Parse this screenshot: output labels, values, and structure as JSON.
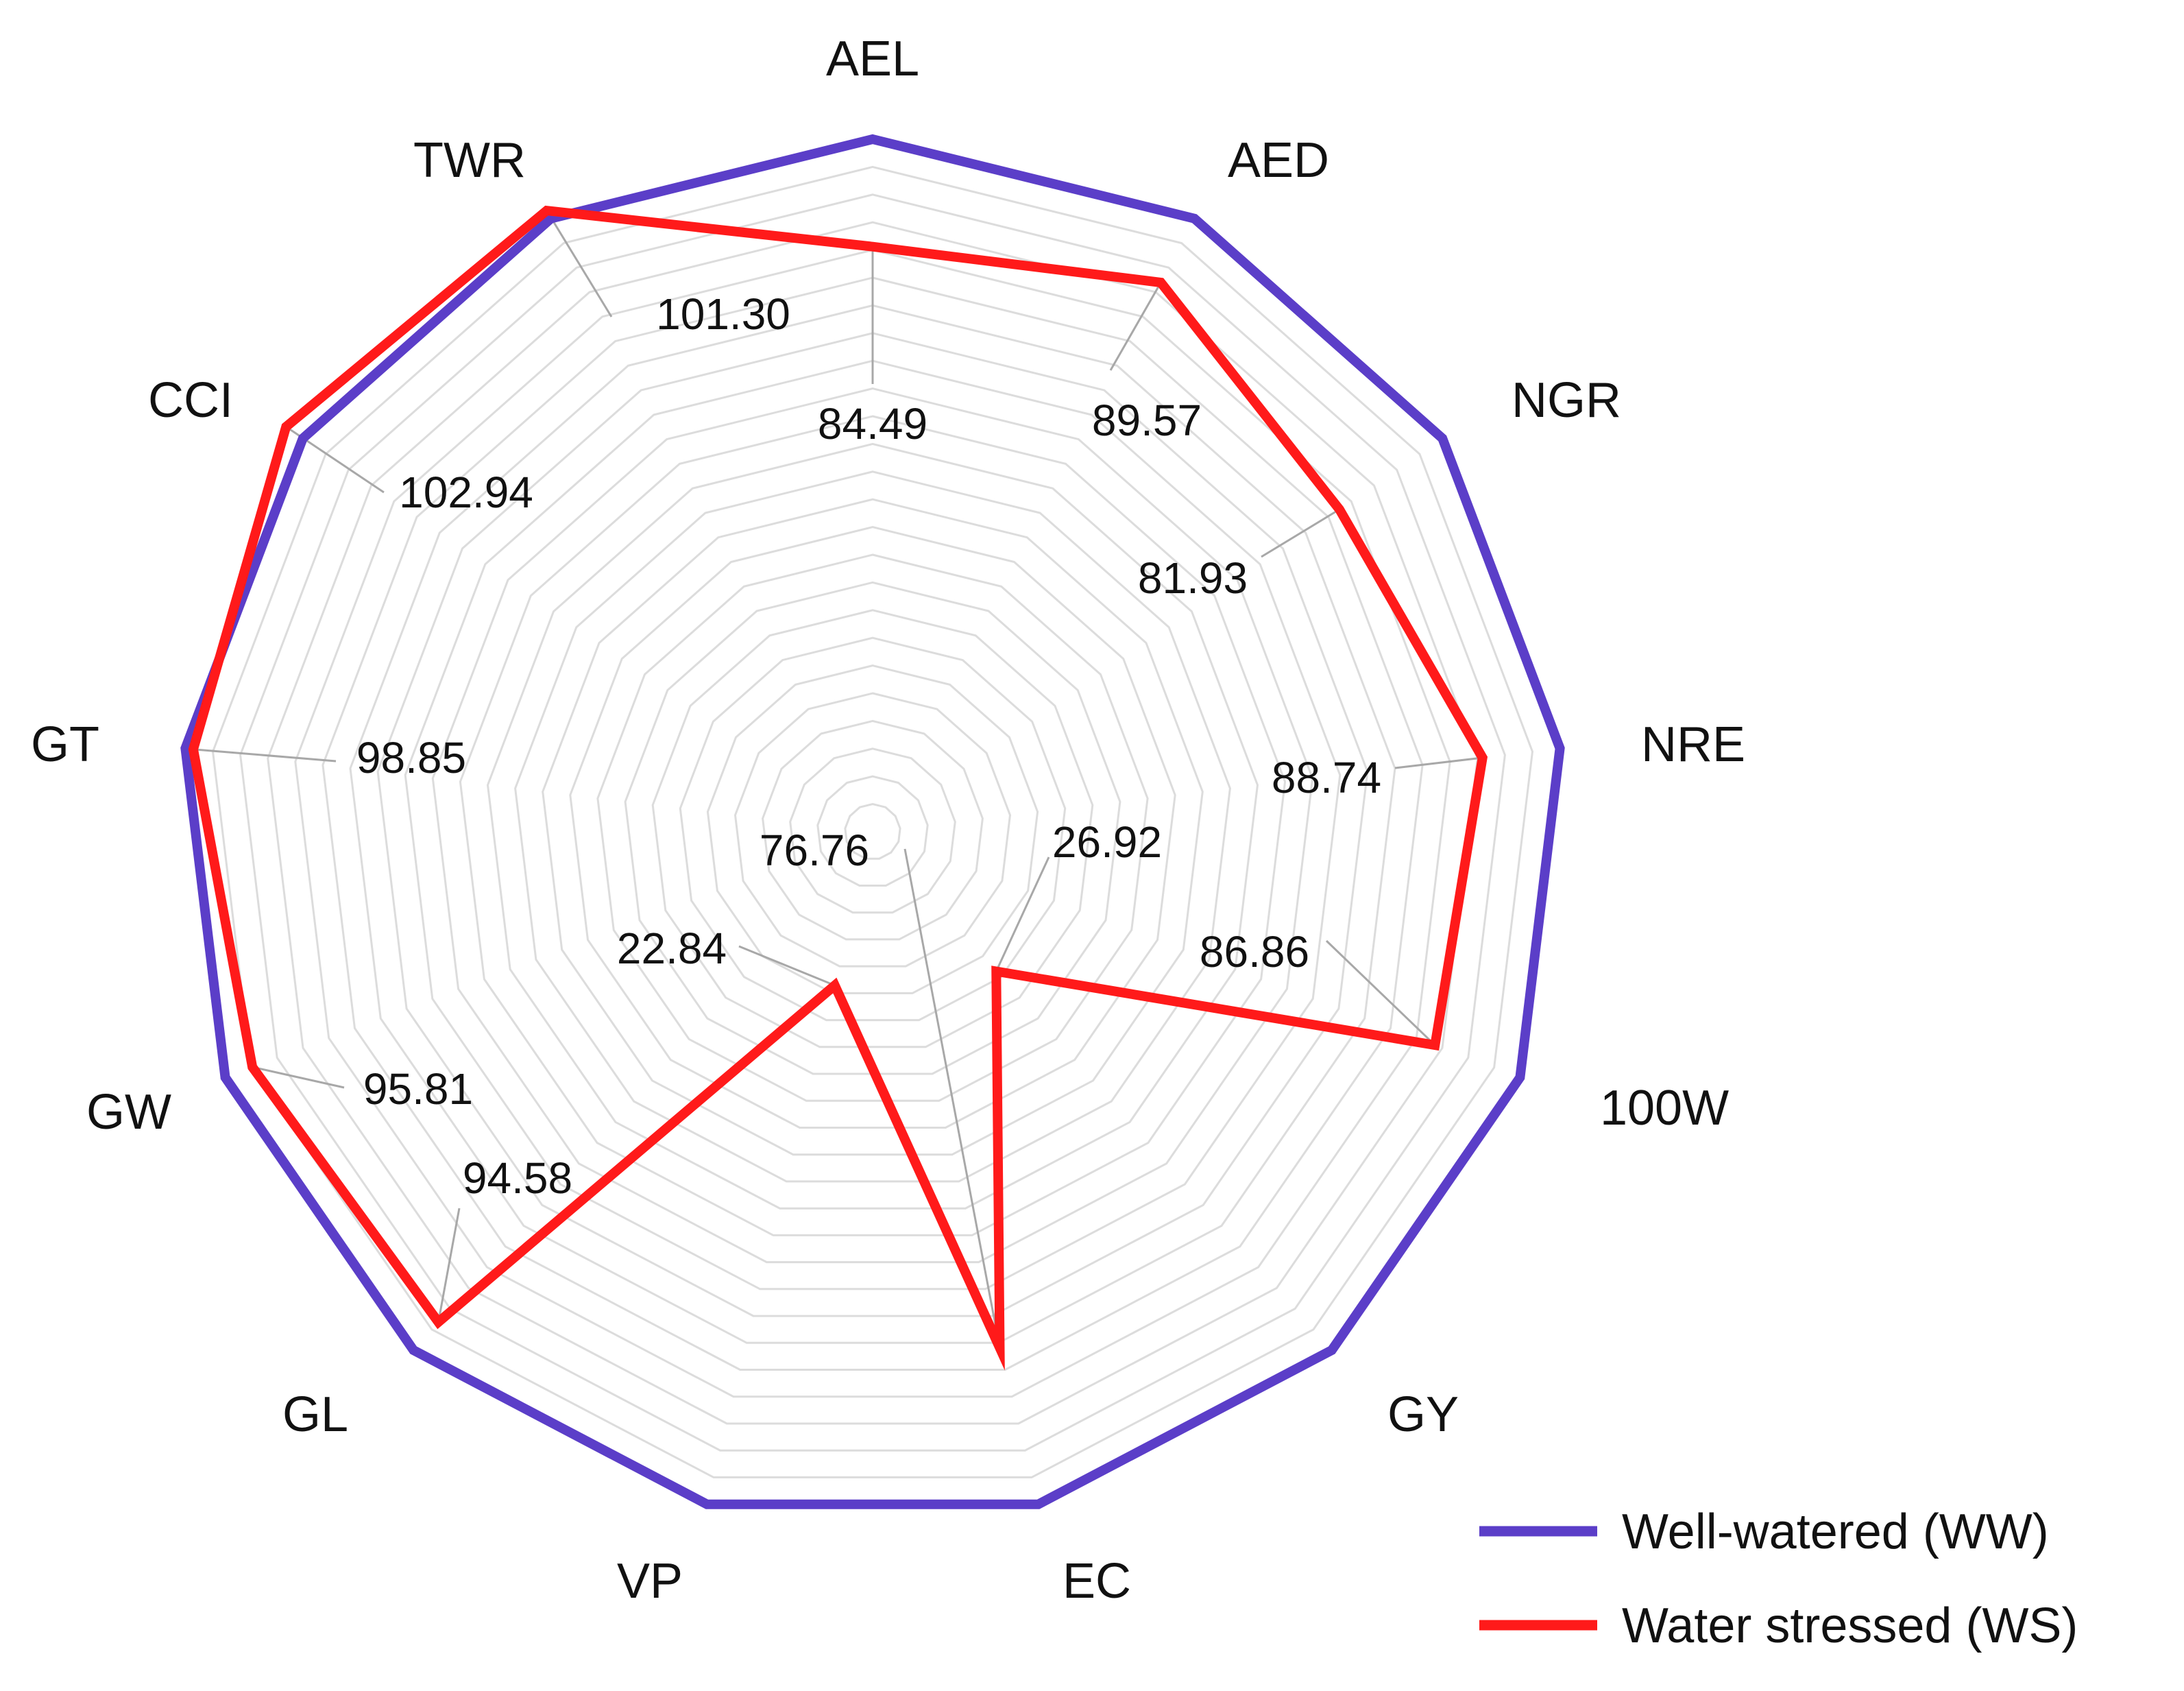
{
  "chart_data": {
    "type": "radar",
    "categories": [
      "AEL",
      "AED",
      "NGR",
      "NRE",
      "100W",
      "GY",
      "EC",
      "VP",
      "GL",
      "GW",
      "GT",
      "CCI",
      "TWR"
    ],
    "range": [
      0,
      100
    ],
    "ring_count": 25,
    "grid": true,
    "legend_position": "bottom-right",
    "series": [
      {
        "name": "Well-watered (WW)",
        "color": "#5B3EC8",
        "values": [
          100,
          100,
          100,
          100,
          100,
          100,
          100,
          100,
          100,
          100,
          100,
          100,
          100
        ]
      },
      {
        "name": "Water stressed (WS)",
        "color": "#FF1A1A",
        "values": [
          84.49,
          89.57,
          81.93,
          88.74,
          86.86,
          26.92,
          76.76,
          22.84,
          94.58,
          95.81,
          98.85,
          102.94,
          101.3
        ]
      }
    ],
    "data_labels": [
      "84.49",
      "89.57",
      "81.93",
      "88.74",
      "86.86",
      "26.92",
      "76.76",
      "22.84",
      "94.58",
      "95.81",
      "98.85",
      "102.94",
      "101.30"
    ]
  }
}
